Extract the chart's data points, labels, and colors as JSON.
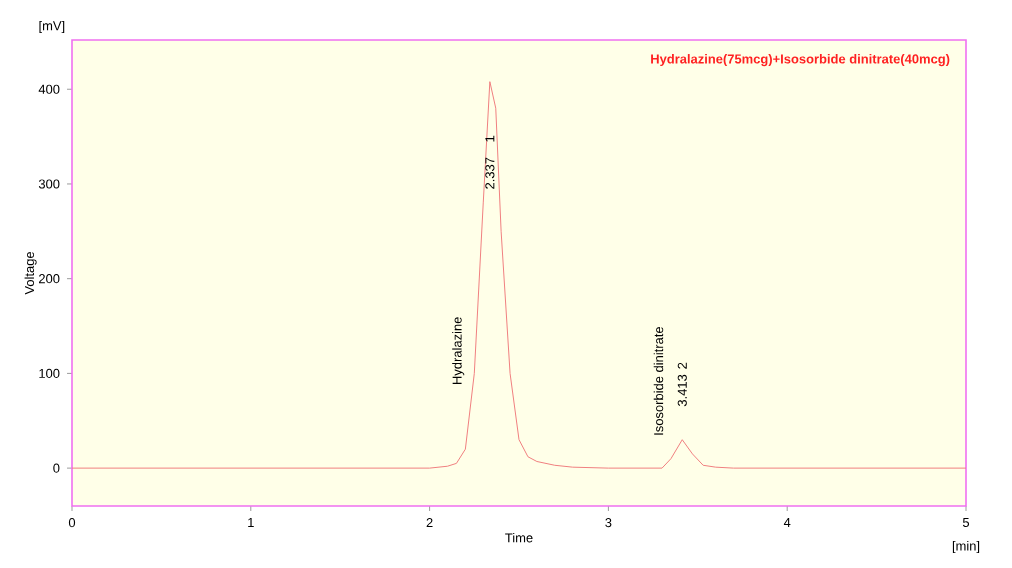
{
  "chart_data": {
    "type": "line",
    "title": "Hydralazine(75mcg)+Isosorbide dinitrate(40mcg)",
    "xlabel": "Time",
    "ylabel": "Voltage",
    "x": [
      0,
      1,
      2.0,
      2.1,
      2.15,
      2.2,
      2.25,
      2.3,
      2.337,
      2.37,
      2.4,
      2.45,
      2.5,
      2.55,
      2.6,
      2.7,
      2.8,
      3.0,
      3.3,
      3.35,
      3.413,
      3.47,
      3.53,
      3.6,
      3.7,
      4,
      5
    ],
    "series": [
      {
        "color": "#f08080",
        "values": [
          0,
          0,
          0,
          2,
          5,
          20,
          100,
          280,
          408,
          380,
          250,
          100,
          30,
          12,
          7,
          3,
          1,
          0,
          0,
          10,
          30,
          15,
          3,
          1,
          0,
          0,
          0
        ]
      }
    ],
    "xlim": [
      0,
      5
    ],
    "ylim": [
      -40,
      452
    ],
    "xticks": [
      0,
      1,
      2,
      3,
      4,
      5
    ],
    "yticks": [
      0,
      100,
      200,
      300,
      400
    ],
    "grid": false,
    "annotations": [
      "[mV]",
      "[min]",
      "Hydralazine",
      "Isosorbide dinitrate",
      "2.337",
      "1",
      "3.413",
      "2"
    ]
  }
}
